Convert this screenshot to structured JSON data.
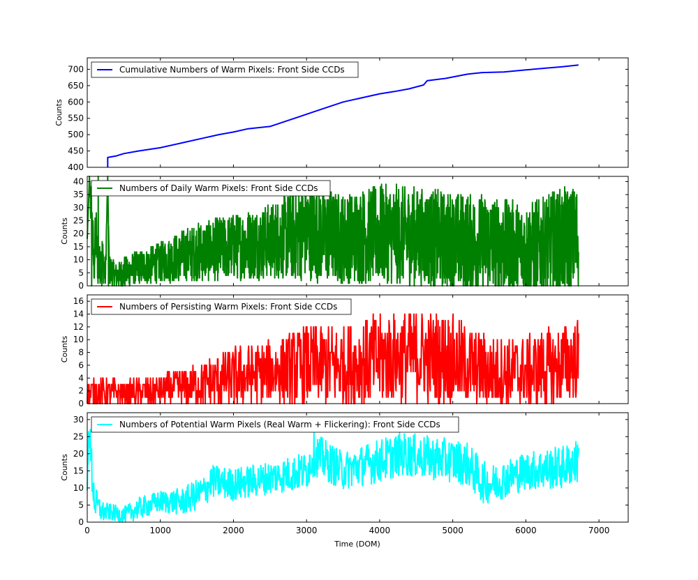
{
  "figure": {
    "xlabel": "Time (DOM)"
  },
  "chart_data": [
    {
      "type": "line",
      "legend": "Cumulative Numbers of Warm Pixels: Front Side CCDs",
      "ylabel": "Counts",
      "color": "#0000ff",
      "xlim": [
        0,
        7400
      ],
      "ylim": [
        400,
        735
      ],
      "xticks": [
        0,
        1000,
        2000,
        3000,
        4000,
        5000,
        6000,
        7000
      ],
      "yticks": [
        400,
        450,
        500,
        550,
        600,
        650,
        700
      ],
      "x": [
        280,
        280,
        400,
        500,
        700,
        1000,
        1300,
        1600,
        1700,
        1800,
        2000,
        2200,
        2500,
        2700,
        2900,
        3100,
        3300,
        3500,
        3700,
        4000,
        4200,
        4400,
        4600,
        4650,
        4900,
        5200,
        5400,
        5700,
        6000,
        6300,
        6500,
        6720
      ],
      "y": [
        400,
        430,
        435,
        442,
        450,
        460,
        475,
        490,
        495,
        500,
        508,
        518,
        525,
        540,
        555,
        570,
        585,
        600,
        610,
        625,
        632,
        640,
        652,
        665,
        672,
        685,
        690,
        692,
        698,
        704,
        708,
        713
      ]
    },
    {
      "type": "line",
      "legend": "Numbers of Daily Warm Pixels: Front Side CCDs",
      "ylabel": "Counts",
      "color": "#008000",
      "xlim": [
        0,
        7400
      ],
      "ylim": [
        0,
        42
      ],
      "yticks": [
        0,
        5,
        10,
        15,
        20,
        25,
        30,
        35,
        40
      ],
      "x": [
        0,
        30,
        60,
        90,
        120,
        150,
        200,
        250,
        280,
        300,
        400,
        500,
        700,
        1000,
        1500,
        2000,
        2500,
        3000,
        3500,
        4000,
        4500,
        5000,
        5500,
        6000,
        6500,
        6720
      ],
      "y": [
        18,
        42,
        25,
        8,
        20,
        5,
        12,
        4,
        42,
        6,
        4,
        5,
        7,
        9,
        13,
        15,
        17,
        21,
        18,
        20,
        19,
        17,
        16,
        14,
        17,
        18
      ],
      "spread": [
        0,
        0,
        10,
        6,
        8,
        4,
        6,
        4,
        0,
        4,
        3,
        4,
        4,
        5,
        7,
        8,
        9,
        12,
        11,
        12,
        12,
        12,
        12,
        11,
        13,
        13
      ]
    },
    {
      "type": "line",
      "legend": "Numbers of Persisting Warm Pixels: Front Side CCDs",
      "ylabel": "Counts",
      "color": "#ff0000",
      "xlim": [
        0,
        7400
      ],
      "ylim": [
        0,
        17
      ],
      "yticks": [
        0,
        2,
        4,
        6,
        8,
        10,
        12,
        14,
        16
      ],
      "x": [
        0,
        100,
        500,
        1000,
        1500,
        2000,
        2500,
        2800,
        3000,
        3500,
        4000,
        4500,
        4900,
        5200,
        5500,
        6000,
        6500,
        6720
      ],
      "y": [
        1,
        2,
        1.5,
        2,
        3,
        4,
        5,
        5.5,
        6,
        6,
        7,
        7.5,
        7,
        6,
        5,
        5,
        6,
        7
      ],
      "spread": [
        1.2,
        1.5,
        1.2,
        1.5,
        2,
        3,
        3,
        3.5,
        4,
        4,
        4.5,
        4.5,
        4.5,
        4,
        3.5,
        3.5,
        4,
        4
      ]
    },
    {
      "type": "line",
      "legend": "Numbers of Potential Warm Pixels (Real Warm + Flickering): Front Side CCDs",
      "ylabel": "Counts",
      "color": "#00ffff",
      "xlim": [
        0,
        7400
      ],
      "ylim": [
        0,
        32
      ],
      "yticks": [
        0,
        5,
        10,
        15,
        20,
        25,
        30
      ],
      "x": [
        0,
        20,
        50,
        100,
        200,
        300,
        500,
        700,
        1000,
        1300,
        1600,
        1700,
        2000,
        2500,
        3000,
        3100,
        3500,
        4000,
        4300,
        4600,
        5000,
        5200,
        5400,
        5500,
        6000,
        6500,
        6720
      ],
      "y": [
        8,
        29,
        18,
        6,
        3,
        3,
        2,
        4,
        6,
        6,
        9,
        12,
        11,
        13,
        15,
        20,
        15,
        18,
        20,
        19,
        18,
        17,
        12,
        11,
        15,
        16,
        18
      ],
      "spread": [
        3,
        2,
        5,
        3,
        2,
        1.5,
        1.5,
        2,
        2,
        2.5,
        3,
        3,
        3,
        3,
        3.5,
        4,
        3.5,
        4,
        4,
        4,
        4,
        4,
        4,
        3.5,
        3.5,
        4,
        4
      ]
    }
  ]
}
